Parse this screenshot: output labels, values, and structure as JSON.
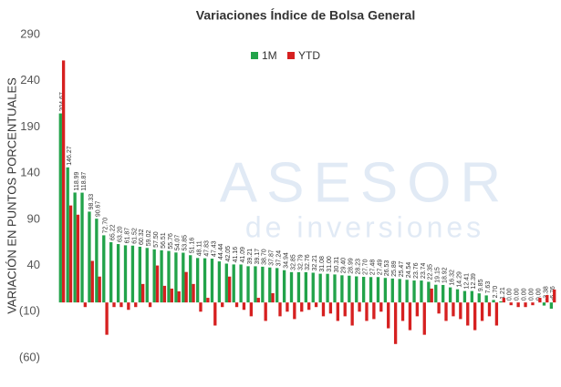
{
  "chart_data": {
    "type": "bar",
    "title": "Variaciones Índice de Bolsa General",
    "y_label": "VARIACIÓN EN PUNTOS PORCENTUALES",
    "watermark": [
      "ASESOR",
      "de inversiones"
    ],
    "categories": [
      null,
      null,
      null,
      null,
      null,
      null,
      null,
      null,
      null,
      null,
      null,
      null,
      null,
      null,
      null,
      null,
      null,
      null,
      null,
      null,
      null,
      null,
      null,
      null,
      null,
      null,
      null,
      null,
      null,
      null,
      null,
      null,
      null,
      null,
      null,
      null,
      null,
      null,
      null,
      null,
      null,
      null,
      null,
      null,
      null,
      null,
      null,
      null,
      null,
      null,
      null,
      null,
      null,
      null,
      null,
      null,
      null,
      null,
      null,
      null,
      null,
      null,
      null,
      null,
      null,
      null,
      null,
      null,
      null
    ],
    "series": [
      {
        "name": "1M",
        "color": "#22a34a",
        "values": [
          204.67,
          146.27,
          118.99,
          118.87,
          98.33,
          90.67,
          72.7,
          65.22,
          63.2,
          61.87,
          61.52,
          60.32,
          59.02,
          57.5,
          56.51,
          55.76,
          54.07,
          53.85,
          51.16,
          48.11,
          47.83,
          47.43,
          44.44,
          42.05,
          41.16,
          41.09,
          39.21,
          39.17,
          38.7,
          37.87,
          37.24,
          34.94,
          32.85,
          32.79,
          32.76,
          32.21,
          31.08,
          31.0,
          30.31,
          29.4,
          28.99,
          28.23,
          27.7,
          27.48,
          27.49,
          26.53,
          25.89,
          25.47,
          24.54,
          23.76,
          23.74,
          22.35,
          19.15,
          18.92,
          16.32,
          14.29,
          12.41,
          12.39,
          9.85,
          7.63,
          2.7,
          1.21,
          0,
          0,
          0,
          0,
          0,
          -3.38,
          -6.76
        ],
        "value_labels": [
          "204.67",
          "146.27",
          "118.99",
          "118.87",
          "98.33",
          "90.67",
          "72.70",
          "65.22",
          "63.20",
          "61.87",
          "61.52",
          "60.32",
          "59.02",
          "57.50",
          "56.51",
          "55.76",
          "54.07",
          "53.85",
          "51.16",
          "48.11",
          "47.83",
          "47.43",
          "44.44",
          "42.05",
          "41.16",
          "41.09",
          "39.21",
          "39.17",
          "38.70",
          "37.87",
          "37.24",
          "34.94",
          "32.85",
          "32.79",
          "32.76",
          "32.21",
          "31.08",
          "31.00",
          "30.31",
          "29.40",
          "28.99",
          "28.23",
          "27.70",
          "27.48",
          "27.49",
          "26.53",
          "25.89",
          "25.47",
          "24.54",
          "23.76",
          "23.74",
          "22.35",
          "19.15",
          "18.92",
          "16.32",
          "14.29",
          "12.41",
          "12.39",
          "9.85",
          "7.63",
          "2.70",
          "1.21",
          "0.00",
          "0.00",
          "0.00",
          "0.00",
          "0.00",
          "-3.38",
          "-6.76"
        ]
      },
      {
        "name": "YTD",
        "color": "#d62020",
        "values": [
          262,
          105,
          95,
          -5,
          45,
          28,
          -35,
          -5,
          -5,
          -8,
          -5,
          20,
          -5,
          40,
          18,
          15,
          12,
          33,
          20,
          -10,
          5,
          -25,
          -5,
          28,
          -5,
          -8,
          -15,
          5,
          -20,
          10,
          -15,
          -10,
          -18,
          -10,
          -8,
          -5,
          -15,
          -12,
          -20,
          -15,
          -25,
          -10,
          -20,
          -18,
          -10,
          -28,
          -45,
          -20,
          -30,
          -15,
          -35,
          15,
          -12,
          -20,
          -15,
          -18,
          -25,
          -30,
          -20,
          -15,
          -25,
          5,
          -3,
          -5,
          -5,
          -3,
          5,
          8,
          14
        ]
      }
    ],
    "ylim": [
      -60,
      290
    ],
    "yticks": [
      290,
      240,
      190,
      140,
      90,
      40,
      {
        "value": -10,
        "label": "(10)"
      },
      {
        "value": -60,
        "label": "(60)"
      }
    ],
    "legend": "top"
  }
}
